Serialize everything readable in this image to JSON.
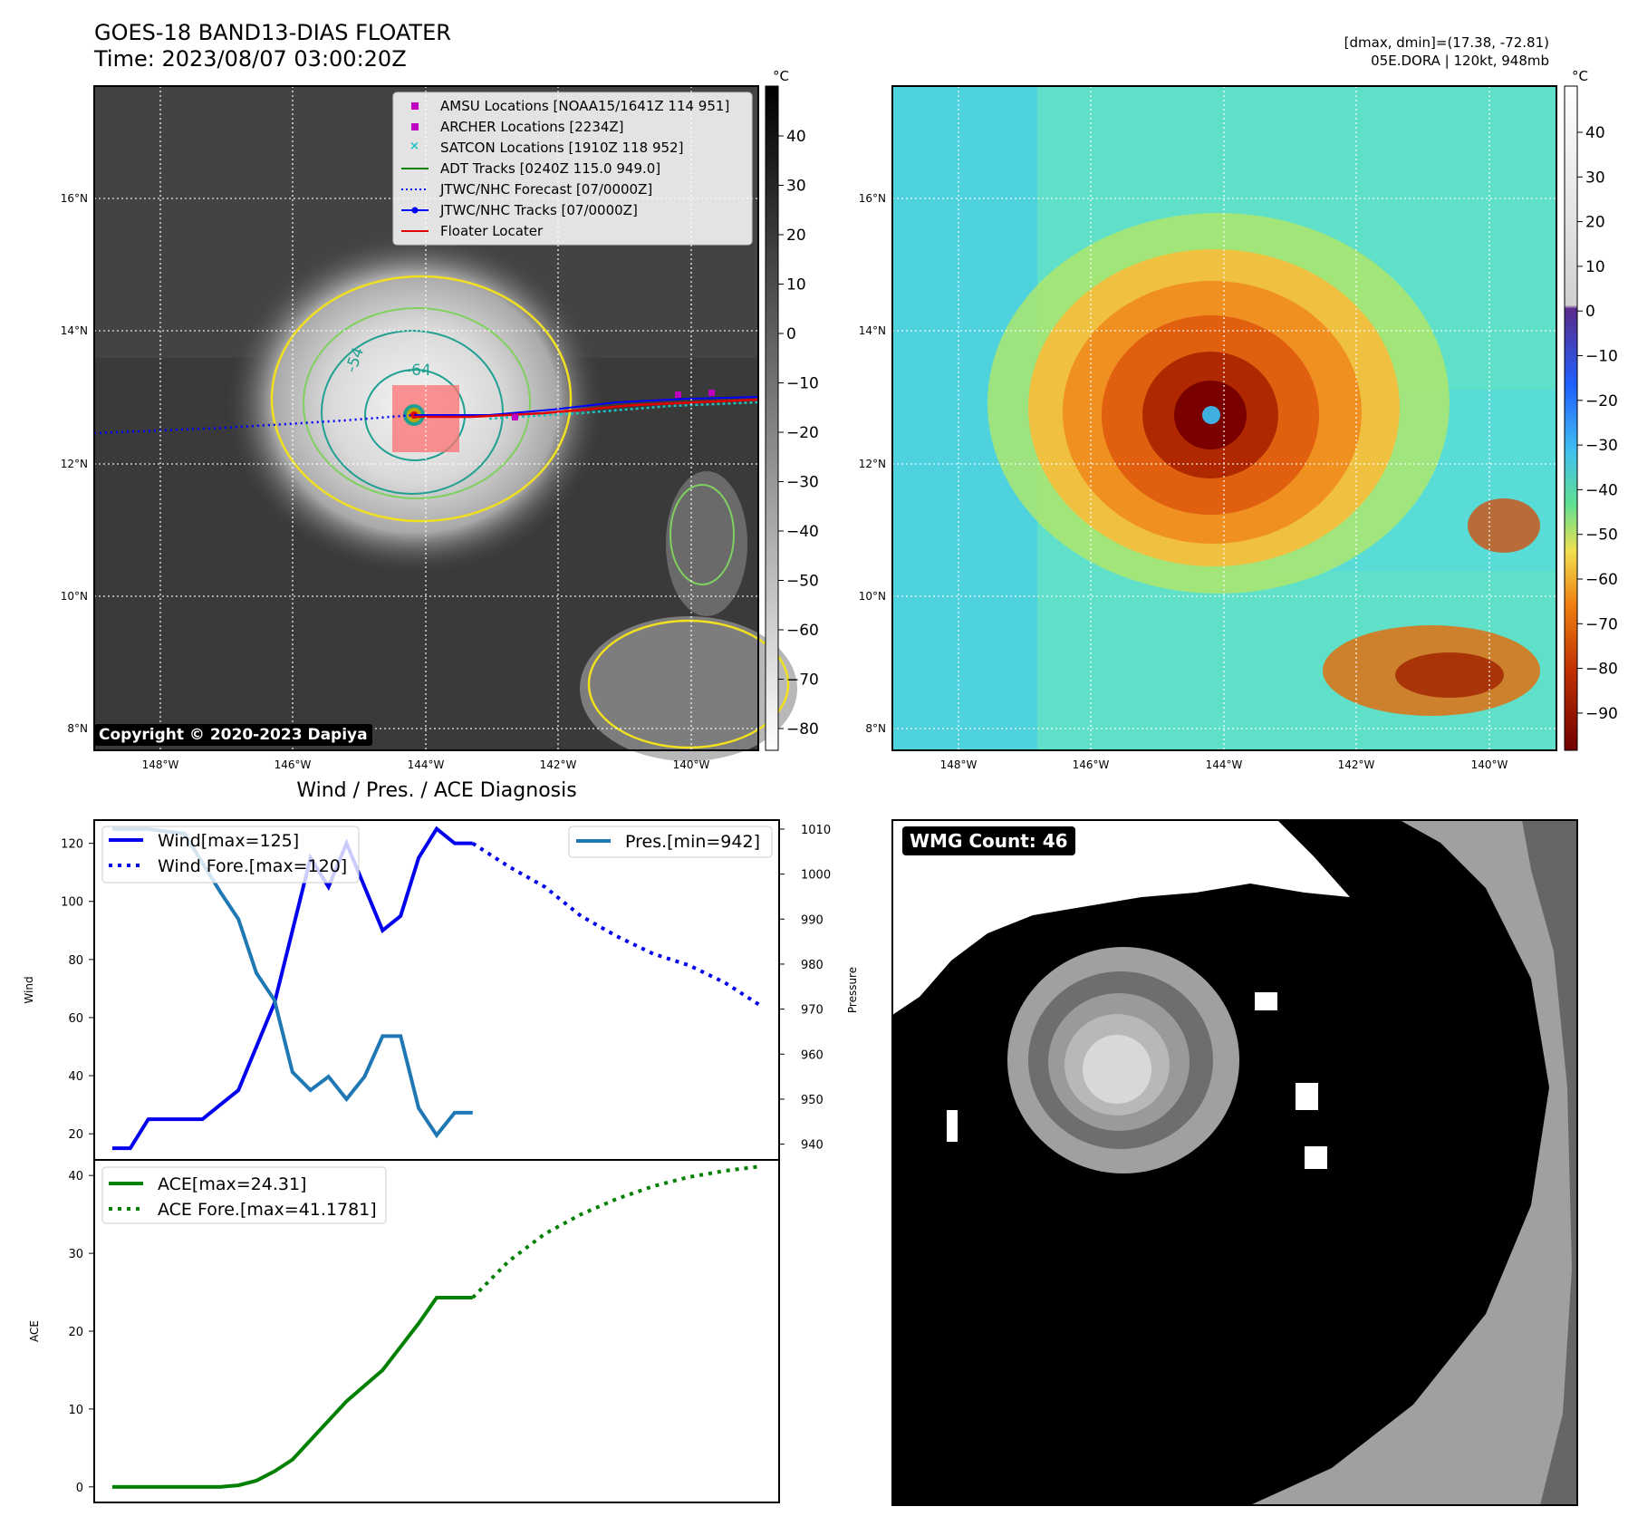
{
  "header": {
    "title": "GOES-18 BAND13-DIAS FLOATER",
    "time": "Time: 2023/08/07 03:00:20Z",
    "stats_line1": "[dmax, dmin]=(17.38, -72.81)",
    "stats_line2": "05E.DORA | 120kt, 948mb",
    "copyright": "Copyright © 2020-2023 Dapiya"
  },
  "map": {
    "lat_ticks": [
      "16°N",
      "14°N",
      "12°N",
      "10°N",
      "8°N"
    ],
    "lon_ticks": [
      "148°W",
      "146°W",
      "144°W",
      "142°W",
      "140°W"
    ],
    "legend": [
      {
        "label": "AMSU Locations [NOAA15/1641Z 114 951]",
        "color": "#c000c0",
        "symbol": "square"
      },
      {
        "label": "ARCHER Locations [2234Z]",
        "color": "#c000c0",
        "symbol": "square"
      },
      {
        "label": "SATCON Locations [1910Z 118 952]",
        "color": "#20c0c0",
        "symbol": "x"
      },
      {
        "label": "ADT Tracks [0240Z 115.0 949.0]",
        "color": "#008000",
        "symbol": "line"
      },
      {
        "label": "JTWC/NHC Forecast [07/0000Z]",
        "color": "#0000ff",
        "symbol": "dotted"
      },
      {
        "label": "JTWC/NHC Tracks [07/0000Z]",
        "color": "#0000ff",
        "symbol": "line-dot"
      },
      {
        "label": "Floater Locater",
        "color": "#e00000",
        "symbol": "line"
      }
    ],
    "contour_labels": [
      "-64",
      "-54"
    ],
    "colorbar_unit": "°C",
    "gray_colorbar_ticks": [
      "40",
      "30",
      "20",
      "10",
      "0",
      "−10",
      "−20",
      "−30",
      "−40",
      "−50",
      "−60",
      "−70",
      "−80"
    ],
    "color_colorbar_ticks": [
      "40",
      "30",
      "20",
      "10",
      "0",
      "−10",
      "−20",
      "−30",
      "−40",
      "−50",
      "−60",
      "−70",
      "−80",
      "−90"
    ]
  },
  "wmg": {
    "badge": "WMG Count: 46"
  },
  "chart_data": [
    {
      "type": "line",
      "title": "Wind / Pres. / ACE Diagnosis",
      "ylabel": "Wind",
      "ylabel_right": "Pressure",
      "ylim": [
        11,
        128
      ],
      "ylim_right": [
        936.5,
        1012
      ],
      "yticks": [
        "20",
        "40",
        "60",
        "80",
        "100",
        "120"
      ],
      "yticks_right": [
        "940",
        "950",
        "960",
        "970",
        "980",
        "990",
        "1000",
        "1010"
      ],
      "x": [
        0,
        1,
        2,
        3,
        4,
        5,
        6,
        7,
        8,
        9,
        10,
        11,
        12,
        13,
        14,
        15,
        16,
        17,
        18,
        19,
        20,
        21,
        22,
        23,
        24,
        25,
        26,
        27,
        28,
        29,
        30,
        31,
        32,
        33,
        34,
        35,
        36,
        37,
        38,
        39,
        40,
        41,
        42,
        43,
        44,
        45,
        46,
        47,
        48,
        49,
        50,
        51,
        52,
        53,
        54,
        55,
        56,
        57,
        58,
        59,
        60,
        61,
        62,
        63,
        64,
        65,
        66,
        67,
        68,
        69,
        70,
        71,
        72
      ],
      "series": [
        {
          "name": "Wind[max=125]",
          "color": "#0000ee",
          "style": "solid",
          "legend": "left",
          "x": [
            0,
            2,
            4,
            6,
            8,
            10,
            12,
            14,
            16,
            18,
            20,
            22,
            24,
            26,
            28,
            30,
            32,
            34,
            36,
            38,
            40
          ],
          "values": [
            15,
            15,
            25,
            25,
            25,
            25,
            30,
            35,
            50,
            65,
            90,
            115,
            105,
            120,
            105,
            90,
            95,
            115,
            125,
            120,
            120
          ]
        },
        {
          "name": "Wind Fore.[max=120]",
          "color": "#0000ee",
          "style": "dotted",
          "legend": "left",
          "x": [
            40,
            44,
            48,
            52,
            56,
            60,
            64,
            68,
            72
          ],
          "values": [
            120,
            112,
            105,
            95,
            88,
            82,
            78,
            72,
            64
          ]
        },
        {
          "name": "Pres.[min=942]",
          "color": "#1f77b4",
          "style": "solid",
          "axis": "right",
          "legend": "right",
          "x": [
            0,
            4,
            8,
            12,
            14,
            16,
            18,
            20,
            22,
            24,
            26,
            28,
            30,
            32,
            34,
            36,
            38,
            40
          ],
          "values": [
            1010,
            1010,
            1009,
            996,
            990,
            978,
            972,
            956,
            952,
            955,
            950,
            955,
            964,
            964,
            948,
            942,
            947,
            947
          ]
        }
      ]
    },
    {
      "type": "line",
      "ylabel": "ACE",
      "ylim": [
        -2,
        42
      ],
      "yticks": [
        "0",
        "10",
        "20",
        "30",
        "40"
      ],
      "series": [
        {
          "name": "ACE[max=24.31]",
          "color": "#008000",
          "style": "solid",
          "x": [
            0,
            12,
            14,
            16,
            18,
            20,
            22,
            24,
            26,
            28,
            30,
            32,
            34,
            36,
            38,
            40
          ],
          "values": [
            0,
            0,
            0.2,
            0.8,
            2,
            3.5,
            6,
            8.5,
            11,
            13,
            15,
            18,
            21,
            24.31,
            24.31,
            24.31
          ]
        },
        {
          "name": "ACE Fore.[max=41.1781]",
          "color": "#008000",
          "style": "dotted",
          "x": [
            40,
            44,
            48,
            52,
            56,
            60,
            64,
            68,
            72
          ],
          "values": [
            24.31,
            29,
            32.5,
            35,
            37,
            38.6,
            39.8,
            40.6,
            41.1781
          ]
        }
      ]
    }
  ]
}
